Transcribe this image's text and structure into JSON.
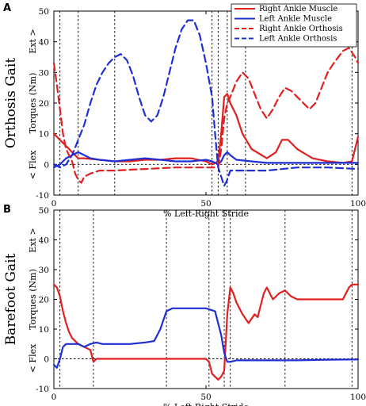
{
  "chart_data": [
    {
      "type": "line",
      "panel_label": "A",
      "row_label": "Orthosis Gait",
      "xlabel": "% Left-Right Stride",
      "ylabel": "Torques (Nm)",
      "ylabel_top": "Ext >",
      "ylabel_bottom": "< Flex",
      "xlim": [
        0,
        100
      ],
      "ylim": [
        -10,
        50
      ],
      "xticks": [
        0,
        50,
        100
      ],
      "yticks": [
        -10,
        0,
        10,
        20,
        30,
        40,
        50
      ],
      "event_lines": [
        2,
        8,
        20,
        52,
        54,
        57,
        63,
        98
      ],
      "legend": {
        "position": "top-right",
        "entries": [
          {
            "name": "Right Ankle Muscle",
            "color": "#e02020",
            "dash": "solid"
          },
          {
            "name": "Left Ankle Muscle",
            "color": "#1f2fd6",
            "dash": "solid"
          },
          {
            "name": "Right Ankle Orthosis",
            "color": "#e02020",
            "dash": "dashed"
          },
          {
            "name": "Left Ankle Orthosis",
            "color": "#1f2fd6",
            "dash": "dashed"
          }
        ]
      },
      "series": [
        {
          "name": "Right Ankle Muscle",
          "color": "#e02020",
          "dash": "solid",
          "points": [
            [
              0,
              10
            ],
            [
              2,
              8
            ],
            [
              4,
              6
            ],
            [
              6,
              4
            ],
            [
              8,
              2
            ],
            [
              10,
              2
            ],
            [
              15,
              1.5
            ],
            [
              20,
              1
            ],
            [
              25,
              1
            ],
            [
              30,
              1.5
            ],
            [
              35,
              1.5
            ],
            [
              40,
              2
            ],
            [
              45,
              2
            ],
            [
              50,
              1
            ],
            [
              52,
              0
            ],
            [
              54,
              1
            ],
            [
              55,
              10
            ],
            [
              56,
              22
            ],
            [
              57,
              23
            ],
            [
              58,
              20
            ],
            [
              60,
              16
            ],
            [
              62,
              10
            ],
            [
              65,
              5
            ],
            [
              70,
              2
            ],
            [
              73,
              4
            ],
            [
              75,
              8
            ],
            [
              77,
              8
            ],
            [
              80,
              5
            ],
            [
              85,
              2
            ],
            [
              90,
              1
            ],
            [
              95,
              0.5
            ],
            [
              98,
              1
            ],
            [
              100,
              9
            ]
          ]
        },
        {
          "name": "Left Ankle Muscle",
          "color": "#1f2fd6",
          "dash": "solid",
          "points": [
            [
              0,
              -1
            ],
            [
              2,
              0
            ],
            [
              4,
              2
            ],
            [
              6,
              3
            ],
            [
              8,
              4
            ],
            [
              10,
              3
            ],
            [
              12,
              2
            ],
            [
              15,
              1.5
            ],
            [
              20,
              1
            ],
            [
              25,
              1.5
            ],
            [
              30,
              2
            ],
            [
              35,
              1.5
            ],
            [
              40,
              1
            ],
            [
              45,
              1
            ],
            [
              50,
              1.5
            ],
            [
              52,
              1
            ],
            [
              54,
              0
            ],
            [
              55,
              1
            ],
            [
              56,
              3
            ],
            [
              57,
              4
            ],
            [
              58,
              3
            ],
            [
              60,
              1.5
            ],
            [
              65,
              1
            ],
            [
              70,
              0.5
            ],
            [
              80,
              0.5
            ],
            [
              90,
              0.5
            ],
            [
              100,
              0.5
            ]
          ]
        },
        {
          "name": "Right Ankle Orthosis",
          "color": "#e02020",
          "dash": "dashed",
          "points": [
            [
              0,
              33
            ],
            [
              1,
              26
            ],
            [
              2,
              18
            ],
            [
              3,
              10
            ],
            [
              4,
              5
            ],
            [
              5,
              3
            ],
            [
              6,
              1
            ],
            [
              7,
              -3
            ],
            [
              8,
              -5
            ],
            [
              9,
              -6
            ],
            [
              10,
              -4
            ],
            [
              12,
              -3
            ],
            [
              15,
              -2
            ],
            [
              20,
              -2
            ],
            [
              30,
              -1.5
            ],
            [
              40,
              -1
            ],
            [
              50,
              -1
            ],
            [
              54,
              -1
            ],
            [
              55,
              5
            ],
            [
              56,
              15
            ],
            [
              57,
              20
            ],
            [
              58,
              22
            ],
            [
              60,
              27
            ],
            [
              62,
              30
            ],
            [
              64,
              28
            ],
            [
              66,
              23
            ],
            [
              68,
              18
            ],
            [
              70,
              15
            ],
            [
              72,
              18
            ],
            [
              74,
              22
            ],
            [
              76,
              25
            ],
            [
              78,
              24
            ],
            [
              80,
              22
            ],
            [
              82,
              20
            ],
            [
              84,
              18
            ],
            [
              86,
              20
            ],
            [
              88,
              25
            ],
            [
              90,
              30
            ],
            [
              92,
              33
            ],
            [
              95,
              37
            ],
            [
              97,
              38
            ],
            [
              99,
              35
            ],
            [
              100,
              33
            ]
          ]
        },
        {
          "name": "Left Ankle Orthosis",
          "color": "#1f2fd6",
          "dash": "dashed",
          "points": [
            [
              0,
              0
            ],
            [
              2,
              -1
            ],
            [
              4,
              0
            ],
            [
              6,
              3
            ],
            [
              8,
              8
            ],
            [
              10,
              13
            ],
            [
              12,
              20
            ],
            [
              14,
              26
            ],
            [
              16,
              30
            ],
            [
              18,
              33
            ],
            [
              20,
              35
            ],
            [
              22,
              36
            ],
            [
              24,
              34
            ],
            [
              26,
              29
            ],
            [
              28,
              22
            ],
            [
              30,
              16
            ],
            [
              32,
              14
            ],
            [
              34,
              16
            ],
            [
              36,
              22
            ],
            [
              38,
              30
            ],
            [
              40,
              38
            ],
            [
              42,
              44
            ],
            [
              44,
              47
            ],
            [
              46,
              47
            ],
            [
              48,
              42
            ],
            [
              50,
              33
            ],
            [
              52,
              22
            ],
            [
              53,
              10
            ],
            [
              54,
              -1
            ],
            [
              55,
              -4
            ],
            [
              56,
              -7
            ],
            [
              57,
              -5
            ],
            [
              58,
              -2
            ],
            [
              60,
              -2
            ],
            [
              62,
              -2
            ],
            [
              65,
              -2
            ],
            [
              70,
              -2
            ],
            [
              80,
              -1
            ],
            [
              90,
              -1
            ],
            [
              100,
              -1.5
            ]
          ]
        }
      ]
    },
    {
      "type": "line",
      "panel_label": "B",
      "row_label": "Barefoot Gait",
      "xlabel": "% Left-Right Stride",
      "ylabel": "Torques (Nm)",
      "ylabel_top": "Ext >",
      "ylabel_bottom": "< Flex",
      "xlim": [
        0,
        100
      ],
      "ylim": [
        -10,
        50
      ],
      "xticks": [
        0,
        50,
        100
      ],
      "yticks": [
        -10,
        0,
        10,
        20,
        30,
        40,
        50
      ],
      "event_lines": [
        2,
        13,
        37,
        51,
        56,
        58,
        76,
        98
      ],
      "series": [
        {
          "name": "Right Ankle Muscle",
          "color": "#e02020",
          "dash": "solid",
          "points": [
            [
              0,
              25
            ],
            [
              1,
              24
            ],
            [
              2,
              21
            ],
            [
              3,
              16
            ],
            [
              4,
              12
            ],
            [
              5,
              9
            ],
            [
              6,
              7
            ],
            [
              8,
              5
            ],
            [
              10,
              4
            ],
            [
              12,
              3
            ],
            [
              13,
              -1
            ],
            [
              14,
              0
            ],
            [
              16,
              0
            ],
            [
              20,
              0
            ],
            [
              30,
              0
            ],
            [
              40,
              0
            ],
            [
              50,
              0
            ],
            [
              51,
              -1
            ],
            [
              52,
              -5
            ],
            [
              54,
              -7
            ],
            [
              55,
              -6
            ],
            [
              56,
              -4
            ],
            [
              57,
              15
            ],
            [
              58,
              24
            ],
            [
              59,
              22
            ],
            [
              60,
              19
            ],
            [
              62,
              15
            ],
            [
              64,
              12
            ],
            [
              66,
              15
            ],
            [
              67,
              14
            ],
            [
              68,
              18
            ],
            [
              69,
              22
            ],
            [
              70,
              24
            ],
            [
              72,
              20
            ],
            [
              74,
              22
            ],
            [
              76,
              23
            ],
            [
              78,
              21
            ],
            [
              80,
              20
            ],
            [
              85,
              20
            ],
            [
              90,
              20
            ],
            [
              95,
              20
            ],
            [
              97,
              24
            ],
            [
              98,
              25
            ],
            [
              100,
              25
            ]
          ]
        },
        {
          "name": "Left Ankle Muscle",
          "color": "#1f2fd6",
          "dash": "solid",
          "points": [
            [
              0,
              -2
            ],
            [
              1,
              -3
            ],
            [
              2,
              0
            ],
            [
              3,
              4
            ],
            [
              4,
              5
            ],
            [
              6,
              5
            ],
            [
              8,
              5
            ],
            [
              10,
              4
            ],
            [
              12,
              5
            ],
            [
              14,
              5.5
            ],
            [
              16,
              5
            ],
            [
              20,
              5
            ],
            [
              25,
              5
            ],
            [
              30,
              5.5
            ],
            [
              33,
              6
            ],
            [
              35,
              10
            ],
            [
              37,
              16
            ],
            [
              39,
              17
            ],
            [
              45,
              17
            ],
            [
              50,
              17
            ],
            [
              53,
              16
            ],
            [
              55,
              8
            ],
            [
              56,
              2
            ],
            [
              57,
              -1
            ],
            [
              58,
              -1
            ],
            [
              60,
              -0.5
            ],
            [
              70,
              -0.5
            ],
            [
              80,
              -0.5
            ],
            [
              90,
              -0.3
            ],
            [
              100,
              -0.2
            ]
          ]
        }
      ]
    }
  ]
}
